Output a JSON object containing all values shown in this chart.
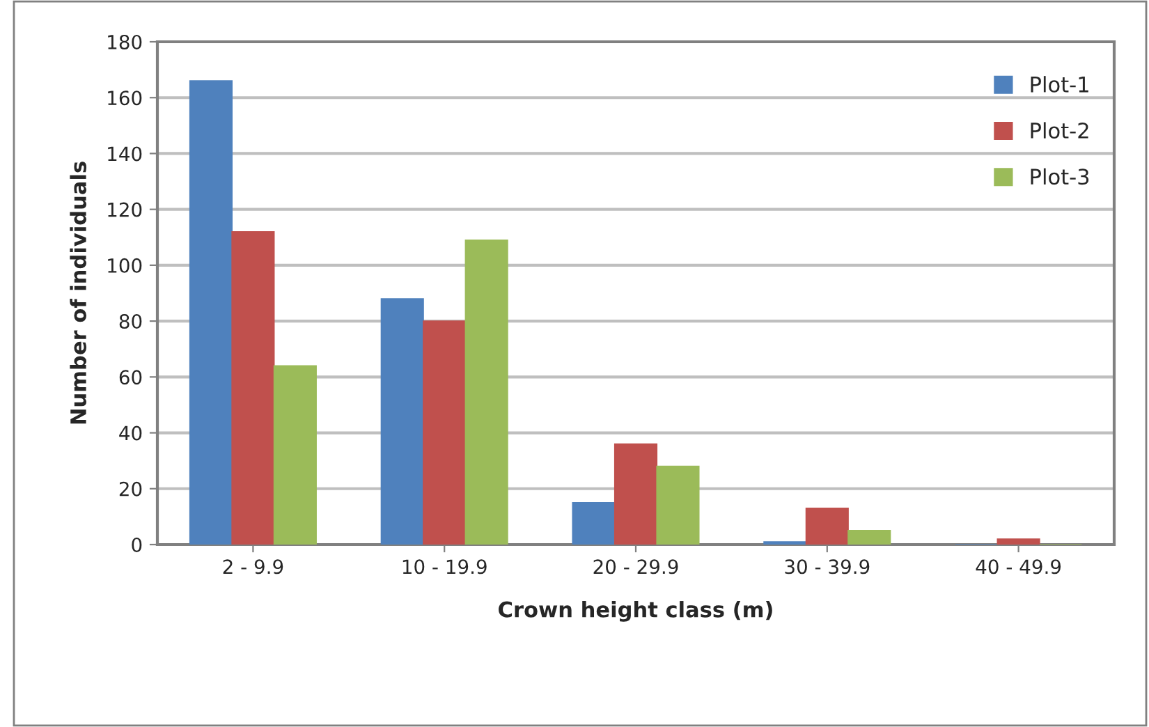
{
  "chart_data": {
    "type": "bar",
    "xlabel": "Crown height class (m)",
    "ylabel": "Number of individuals",
    "categories": [
      "2 - 9.9",
      "10 - 19.9",
      "20 - 29.9",
      "30 - 39.9",
      "40 - 49.9"
    ],
    "series": [
      {
        "name": "Plot-1",
        "color": "#4f81bd",
        "values": [
          166,
          88,
          15,
          1,
          0
        ]
      },
      {
        "name": "Plot-2",
        "color": "#c0504d",
        "values": [
          112,
          80,
          36,
          13,
          2
        ]
      },
      {
        "name": "Plot-3",
        "color": "#9bbb59",
        "values": [
          64,
          109,
          28,
          5,
          0
        ]
      }
    ],
    "ylim": [
      0,
      180
    ],
    "yticks": [
      0,
      20,
      40,
      60,
      80,
      100,
      120,
      140,
      160,
      180
    ],
    "grid": "y",
    "legend": "top right"
  }
}
